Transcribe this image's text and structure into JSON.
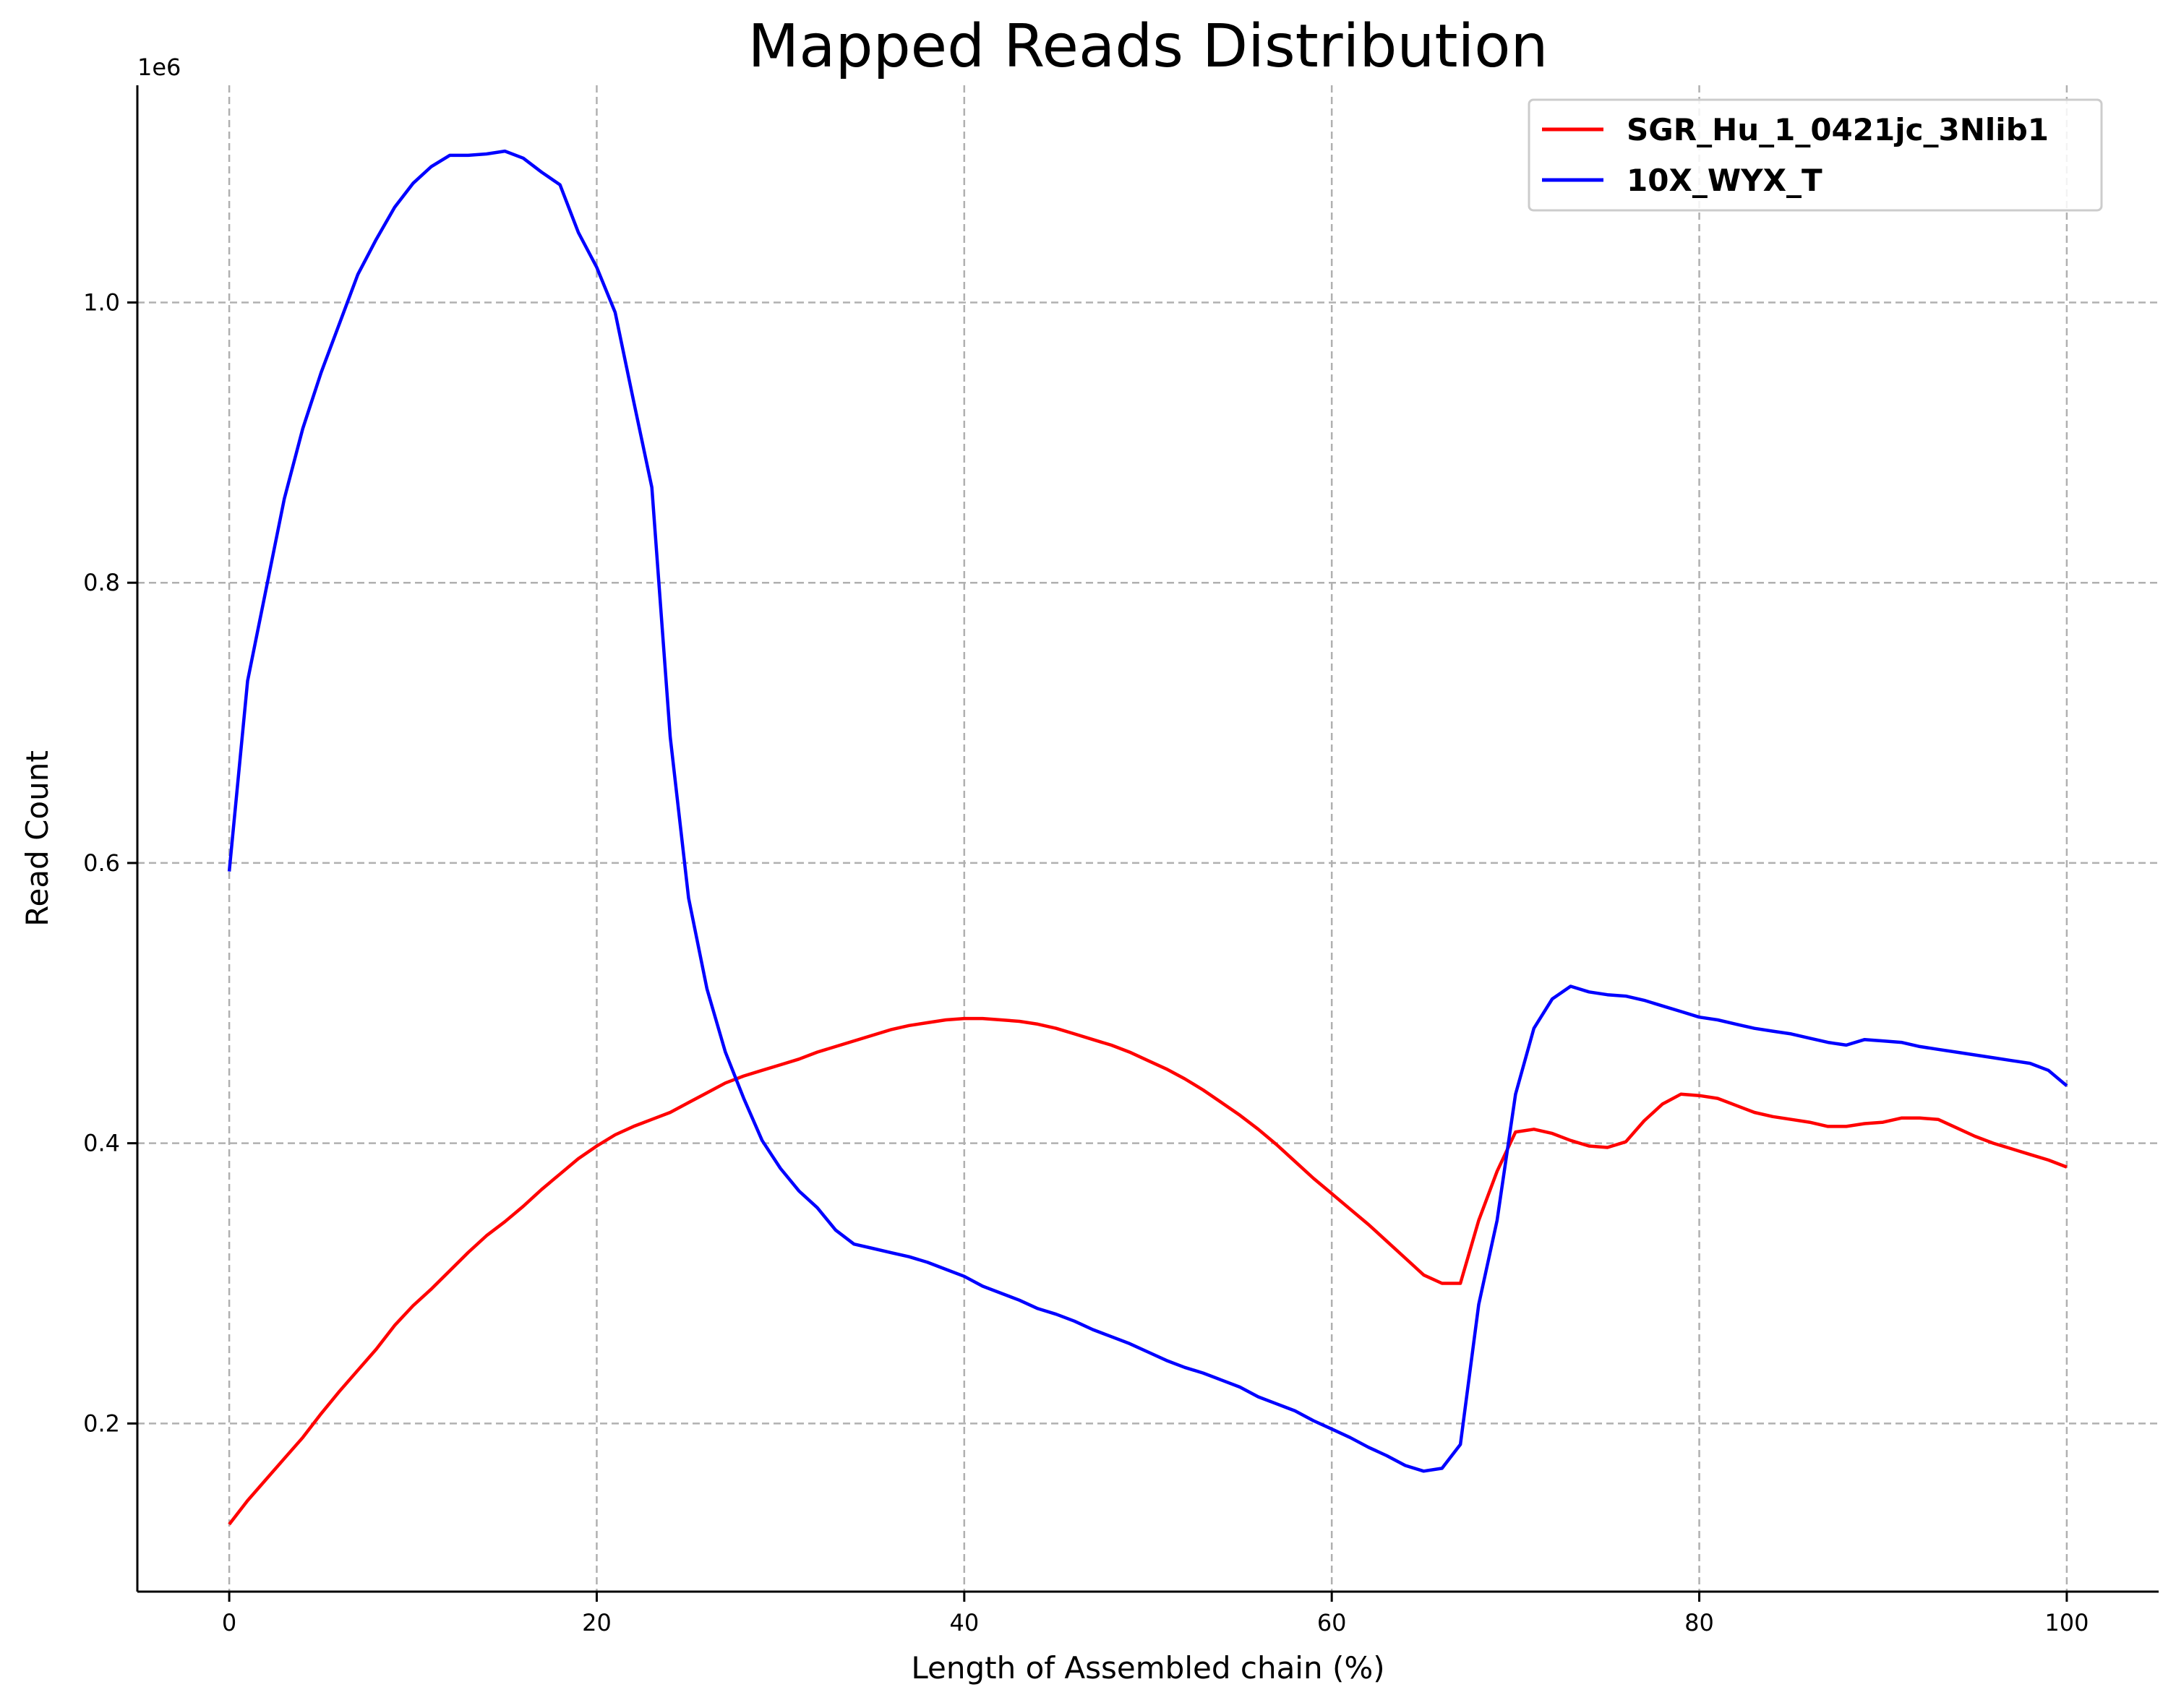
{
  "chart_data": {
    "type": "line",
    "title": "Mapped Reads Distribution",
    "xlabel": "Length of Assembled chain (%)",
    "ylabel": "Read Count",
    "y_offset_label": "1e6",
    "xlim": [
      -5,
      105
    ],
    "ylim": [
      0.08,
      1.155
    ],
    "xticks": [
      0,
      20,
      40,
      60,
      80,
      100
    ],
    "xtick_labels": [
      "0",
      "20",
      "40",
      "60",
      "80",
      "100"
    ],
    "yticks": [
      0.2,
      0.4,
      0.6,
      0.8,
      1.0
    ],
    "ytick_labels": [
      "0.2",
      "0.4",
      "0.6",
      "0.8",
      "1.0"
    ],
    "grid": true,
    "legend_position": "top-right",
    "x": [
      0,
      1,
      2,
      3,
      4,
      5,
      6,
      7,
      8,
      9,
      10,
      11,
      12,
      13,
      14,
      15,
      16,
      17,
      18,
      19,
      20,
      21,
      22,
      23,
      24,
      25,
      26,
      27,
      28,
      29,
      30,
      31,
      32,
      33,
      34,
      35,
      36,
      37,
      38,
      39,
      40,
      41,
      42,
      43,
      44,
      45,
      46,
      47,
      48,
      49,
      50,
      51,
      52,
      53,
      54,
      55,
      56,
      57,
      58,
      59,
      60,
      61,
      62,
      63,
      64,
      65,
      66,
      67,
      68,
      69,
      70,
      71,
      72,
      73,
      74,
      75,
      76,
      77,
      78,
      79,
      80,
      81,
      82,
      83,
      84,
      85,
      86,
      87,
      88,
      89,
      90,
      91,
      92,
      93,
      94,
      95,
      96,
      97,
      98,
      99,
      100
    ],
    "series": [
      {
        "name": "SGR_Hu_1_0421jc_3Nlib1",
        "color": "#ff0000",
        "values": [
          0.128,
          0.145,
          0.16,
          0.175,
          0.19,
          0.207,
          0.223,
          0.238,
          0.253,
          0.27,
          0.284,
          0.296,
          0.309,
          0.322,
          0.334,
          0.344,
          0.355,
          0.367,
          0.378,
          0.389,
          0.398,
          0.406,
          0.412,
          0.417,
          0.422,
          0.429,
          0.436,
          0.443,
          0.448,
          0.452,
          0.456,
          0.46,
          0.465,
          0.469,
          0.473,
          0.477,
          0.481,
          0.484,
          0.486,
          0.488,
          0.489,
          0.489,
          0.488,
          0.487,
          0.485,
          0.482,
          0.478,
          0.474,
          0.47,
          0.465,
          0.459,
          0.453,
          0.446,
          0.438,
          0.429,
          0.42,
          0.41,
          0.399,
          0.387,
          0.375,
          0.364,
          0.353,
          0.342,
          0.33,
          0.318,
          0.306,
          0.3,
          0.3,
          0.345,
          0.38,
          0.408,
          0.41,
          0.407,
          0.402,
          0.398,
          0.397,
          0.401,
          0.416,
          0.428,
          0.435,
          0.434,
          0.432,
          0.427,
          0.422,
          0.419,
          0.417,
          0.415,
          0.412,
          0.412,
          0.414,
          0.415,
          0.418,
          0.418,
          0.417,
          0.411,
          0.405,
          0.4,
          0.396,
          0.392,
          0.388,
          0.383
        ]
      },
      {
        "name": "10X_WYX_T",
        "color": "#0000ff",
        "values": [
          0.594,
          0.73,
          0.795,
          0.86,
          0.91,
          0.95,
          0.985,
          1.02,
          1.045,
          1.068,
          1.085,
          1.097,
          1.105,
          1.105,
          1.106,
          1.108,
          1.103,
          1.093,
          1.084,
          1.05,
          1.025,
          0.993,
          0.93,
          0.868,
          0.69,
          0.575,
          0.51,
          0.465,
          0.432,
          0.402,
          0.382,
          0.366,
          0.354,
          0.338,
          0.328,
          0.325,
          0.322,
          0.319,
          0.315,
          0.31,
          0.305,
          0.298,
          0.293,
          0.288,
          0.282,
          0.278,
          0.273,
          0.267,
          0.262,
          0.257,
          0.251,
          0.245,
          0.24,
          0.236,
          0.231,
          0.226,
          0.219,
          0.214,
          0.209,
          0.202,
          0.196,
          0.19,
          0.183,
          0.177,
          0.17,
          0.166,
          0.168,
          0.185,
          0.285,
          0.345,
          0.435,
          0.482,
          0.503,
          0.512,
          0.508,
          0.506,
          0.505,
          0.502,
          0.498,
          0.494,
          0.49,
          0.488,
          0.485,
          0.482,
          0.48,
          0.478,
          0.475,
          0.472,
          0.47,
          0.474,
          0.473,
          0.472,
          0.469,
          0.467,
          0.465,
          0.463,
          0.461,
          0.459,
          0.457,
          0.452,
          0.441
        ]
      }
    ]
  }
}
